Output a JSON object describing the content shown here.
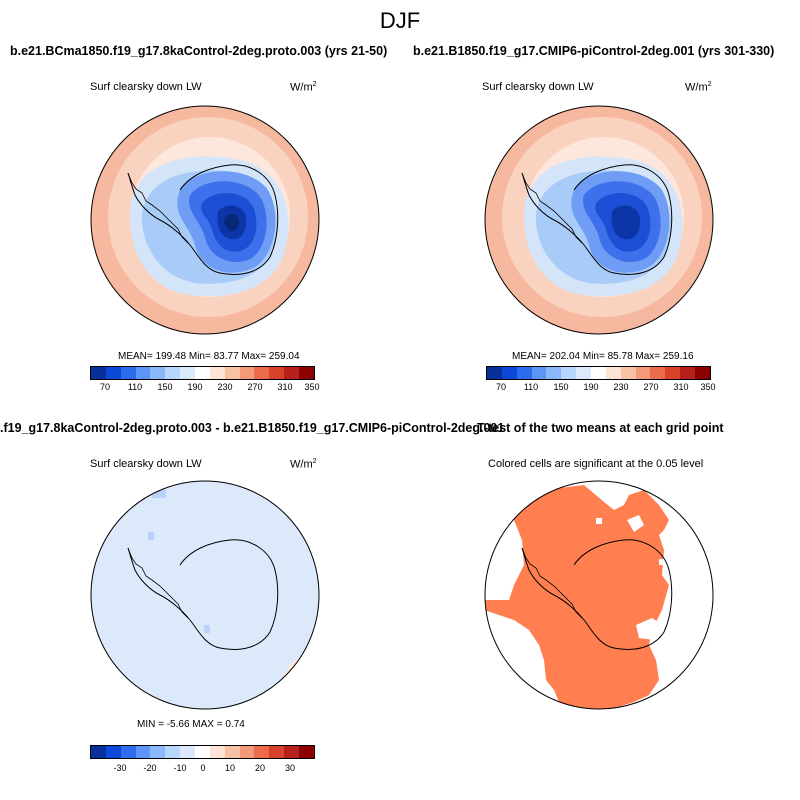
{
  "season": "DJF",
  "panels": [
    {
      "case_title": "b.e21.BCma1850.f19_g17.8kaControl-2deg.proto.003 (yrs 21-50)",
      "variable": "Surf clearsky down LW",
      "units_base": "W/m",
      "units_exp": "2",
      "stats": "MEAN= 199.48  Min=  83.77  Max= 259.04"
    },
    {
      "case_title": "b.e21.B1850.f19_g17.CMIP6-piControl-2deg.001 (yrs 301-330)",
      "variable": "Surf clearsky down LW",
      "units_base": "W/m",
      "units_exp": "2",
      "stats": "MEAN= 202.04  Min=  85.78  Max= 259.16"
    },
    {
      "case_title": ".f19_g17.8kaControl-2deg.proto.003 - b.e21.B1850.f19_g17.CMIP6-piControl-2deg.001",
      "variable": "Surf clearsky down LW",
      "units_base": "W/m",
      "units_exp": "2",
      "stats": "MIN =  -5.66 MAX =   0.74"
    },
    {
      "case_title": "T-test of the two means at each grid point",
      "subtitle": "Colored cells are significant at the 0.05 level"
    }
  ],
  "colorbar_abs": {
    "labels": [
      "70",
      "110",
      "150",
      "190",
      "230",
      "270",
      "310",
      "350"
    ],
    "colors": [
      "#08309b",
      "#0d47d8",
      "#2c6cef",
      "#5d95f7",
      "#8ab8f9",
      "#b6d6fb",
      "#dce9fa",
      "#ffffff",
      "#fde4d6",
      "#f8c1a4",
      "#f39a79",
      "#ea6c4a",
      "#d8412a",
      "#b8201c",
      "#8b0000"
    ]
  },
  "colorbar_diff": {
    "labels": [
      "-30",
      "-20",
      "-10",
      "0",
      "10",
      "20",
      "30"
    ],
    "colors": [
      "#08309b",
      "#0d47d8",
      "#2c6cef",
      "#5d95f7",
      "#8ab8f9",
      "#b6d6fb",
      "#dce9fa",
      "#ffffff",
      "#fde4d6",
      "#f8c1a4",
      "#f39a79",
      "#ea6c4a",
      "#d8412a",
      "#b8201c",
      "#8b0000"
    ]
  },
  "colors": {
    "significant": "#ff7f50",
    "diff_background": "#dbe9fa"
  }
}
